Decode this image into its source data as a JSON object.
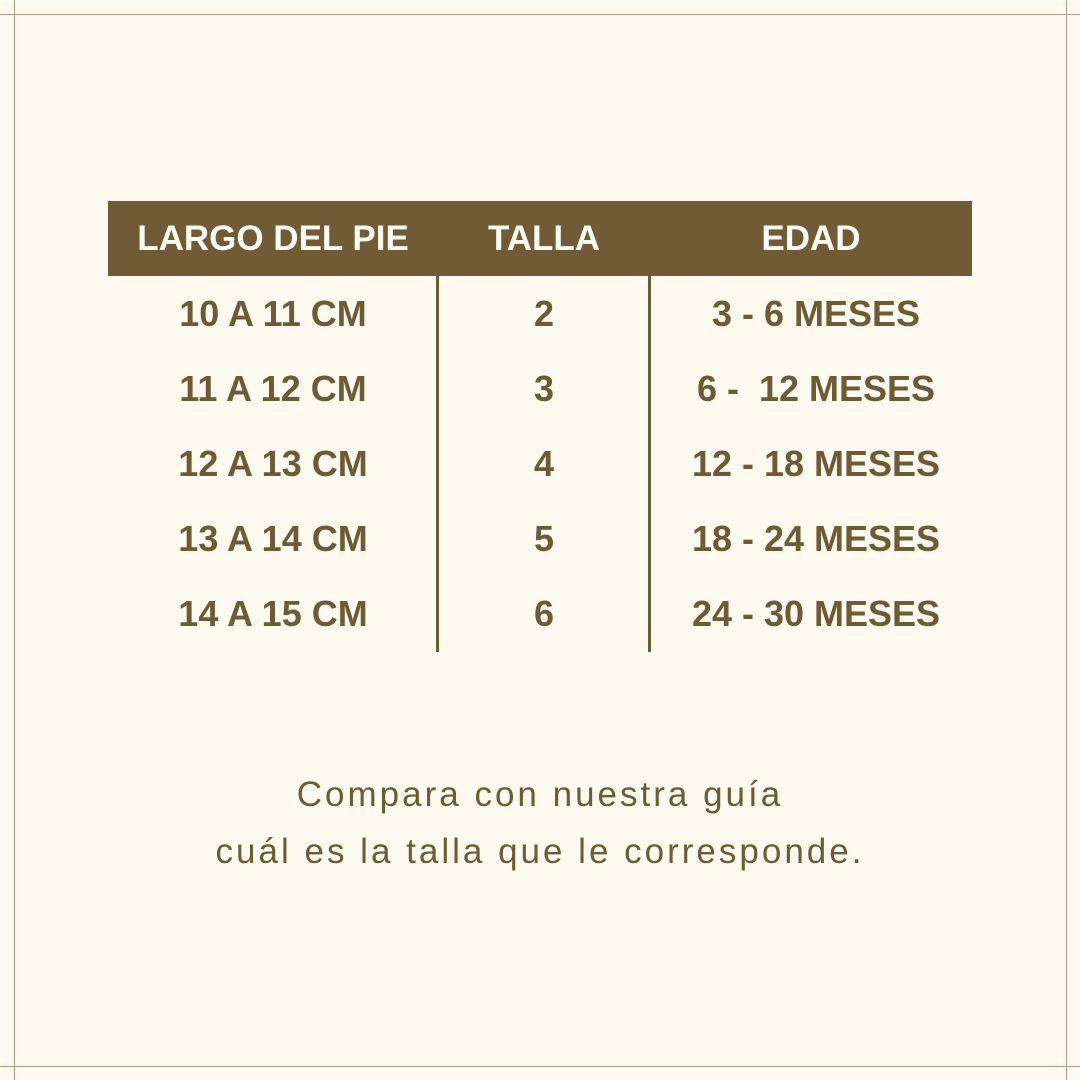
{
  "table": {
    "headers": [
      "LARGO DEL PIE",
      "TALLA",
      "EDAD"
    ],
    "rows": [
      [
        "10 A 11 CM",
        "2",
        "3 - 6 MESES"
      ],
      [
        "11 A 12 CM",
        "3",
        "6 -  12 MESES"
      ],
      [
        "12 A 13 CM",
        "4",
        "12 - 18 MESES"
      ],
      [
        "13 A 14 CM",
        "5",
        "18 - 24 MESES"
      ],
      [
        "14 A 15 CM",
        "6",
        "24 - 30 MESES"
      ]
    ]
  },
  "caption": {
    "line1": "Compara con nuestra guía",
    "line2": "cuál es la talla que le corresponde."
  },
  "colors": {
    "background": "#fffaf0",
    "header": "#705b36",
    "text": "#6e5a35",
    "frame": "#b99c8a"
  }
}
